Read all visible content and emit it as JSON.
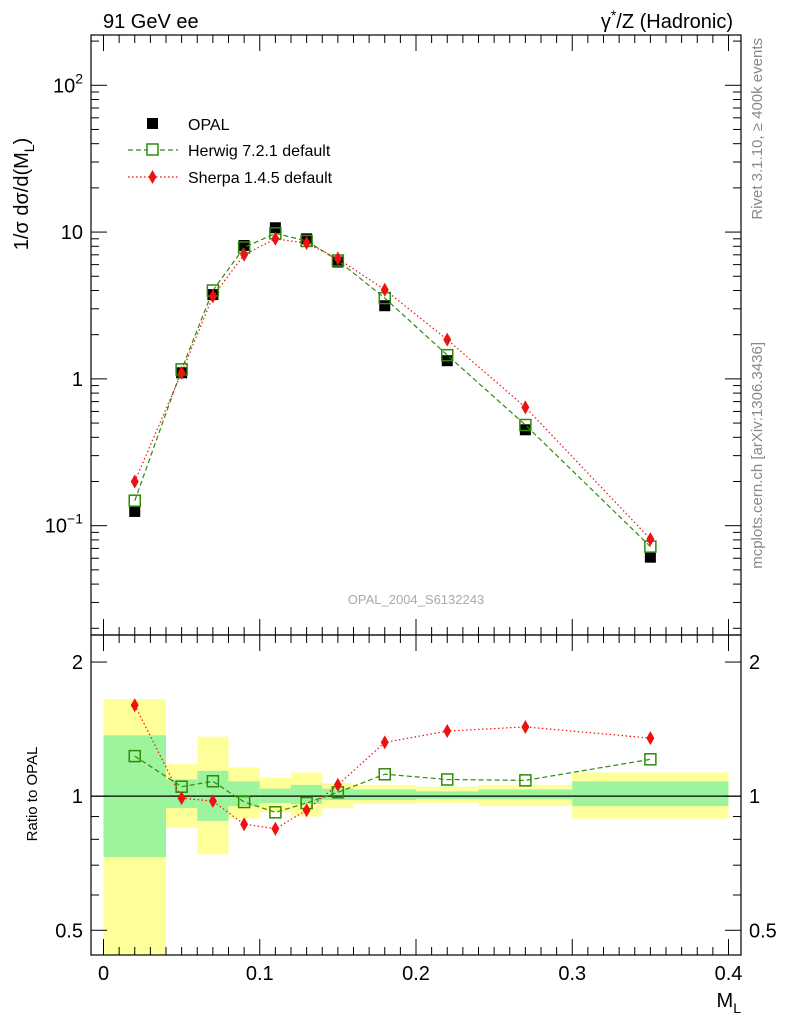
{
  "header": {
    "left": "91 GeV ee",
    "right_prefix": "γ",
    "right_sup": "*",
    "right_suffix": "/Z (Hadronic)"
  },
  "side_labels": {
    "rivet": "Rivet 3.1.10, ≥ 400k events",
    "mcplots": "mcplots.cern.ch [arXiv:1306.3436]"
  },
  "watermark": "OPAL_2004_S6132243",
  "colors": {
    "opal": "#000000",
    "herwig": "#2e8b08",
    "sherpa": "#ee1111",
    "band_inner": "#9cf59c",
    "band_outer": "#ffff99"
  },
  "chart_data": [
    {
      "type": "scatter",
      "panel": "main",
      "ylabel_parts": [
        "1/σ dσ/d(M",
        "L",
        ")"
      ],
      "yscale": "log",
      "ylim": [
        0.018,
        220
      ],
      "xlim": [
        -0.008,
        0.408
      ],
      "y_ticks": [
        {
          "value": 0.1,
          "base": "10",
          "exp": "−1"
        },
        {
          "value": 1,
          "base": "1",
          "exp": ""
        },
        {
          "value": 10,
          "base": "10",
          "exp": ""
        },
        {
          "value": 100,
          "base": "10",
          "exp": "2"
        }
      ],
      "legend": {
        "position": "top-left",
        "entries": [
          "OPAL",
          "Herwig 7.2.1 default",
          "Sherpa 1.4.5 default"
        ]
      },
      "series": [
        {
          "name": "OPAL",
          "marker": "filled-square",
          "x": [
            0.02,
            0.05,
            0.07,
            0.09,
            0.11,
            0.13,
            0.15,
            0.18,
            0.22,
            0.27,
            0.35
          ],
          "y": [
            0.125,
            1.1,
            3.75,
            8.1,
            10.7,
            9.0,
            6.25,
            3.15,
            1.33,
            0.45,
            0.061
          ]
        },
        {
          "name": "Herwig 7.2.1 default",
          "marker": "open-square",
          "line": "dashed",
          "x": [
            0.02,
            0.05,
            0.07,
            0.09,
            0.11,
            0.13,
            0.15,
            0.18,
            0.22,
            0.27,
            0.35
          ],
          "y": [
            0.148,
            1.16,
            4.0,
            7.85,
            9.8,
            8.7,
            6.4,
            3.55,
            1.45,
            0.485,
            0.072
          ]
        },
        {
          "name": "Sherpa 1.4.5 default",
          "marker": "filled-diamond",
          "line": "dotted",
          "x": [
            0.02,
            0.05,
            0.07,
            0.09,
            0.11,
            0.13,
            0.15,
            0.18,
            0.22,
            0.27,
            0.35
          ],
          "y": [
            0.2,
            1.1,
            3.65,
            7.0,
            9.0,
            8.4,
            6.6,
            4.05,
            1.85,
            0.64,
            0.081
          ]
        }
      ]
    },
    {
      "type": "scatter",
      "panel": "ratio",
      "ylabel": "Ratio to OPAL",
      "xlabel_parts": [
        "M",
        "L"
      ],
      "yscale": "log",
      "ylim": [
        0.44,
        2.3
      ],
      "xlim": [
        -0.008,
        0.408
      ],
      "y_ticks": [
        0.5,
        1,
        2
      ],
      "x_ticks": [
        {
          "value": 0,
          "label": "0"
        },
        {
          "value": 0.1,
          "label": "0.1"
        },
        {
          "value": 0.2,
          "label": "0.2"
        },
        {
          "value": 0.3,
          "label": "0.3"
        },
        {
          "value": 0.4,
          "label": "0.4"
        }
      ],
      "bands": [
        {
          "x0": 0.0,
          "x1": 0.04,
          "inner": [
            0.73,
            1.37
          ],
          "outer": [
            0.38,
            1.65
          ]
        },
        {
          "x0": 0.04,
          "x1": 0.06,
          "inner": [
            0.94,
            1.09
          ],
          "outer": [
            0.85,
            1.18
          ]
        },
        {
          "x0": 0.06,
          "x1": 0.08,
          "inner": [
            0.88,
            1.14
          ],
          "outer": [
            0.74,
            1.36
          ]
        },
        {
          "x0": 0.08,
          "x1": 0.1,
          "inner": [
            0.95,
            1.08
          ],
          "outer": [
            0.89,
            1.16
          ]
        },
        {
          "x0": 0.1,
          "x1": 0.12,
          "inner": [
            0.965,
            1.04
          ],
          "outer": [
            0.92,
            1.1
          ]
        },
        {
          "x0": 0.12,
          "x1": 0.14,
          "inner": [
            0.96,
            1.06
          ],
          "outer": [
            0.9,
            1.13
          ]
        },
        {
          "x0": 0.14,
          "x1": 0.16,
          "inner": [
            0.98,
            1.04
          ],
          "outer": [
            0.94,
            1.07
          ]
        },
        {
          "x0": 0.16,
          "x1": 0.2,
          "inner": [
            0.98,
            1.035
          ],
          "outer": [
            0.96,
            1.06
          ]
        },
        {
          "x0": 0.2,
          "x1": 0.24,
          "inner": [
            0.985,
            1.025
          ],
          "outer": [
            0.965,
            1.05
          ]
        },
        {
          "x0": 0.24,
          "x1": 0.3,
          "inner": [
            0.985,
            1.035
          ],
          "outer": [
            0.95,
            1.06
          ]
        },
        {
          "x0": 0.3,
          "x1": 0.4,
          "inner": [
            0.95,
            1.08
          ],
          "outer": [
            0.89,
            1.13
          ]
        }
      ],
      "series": [
        {
          "name": "Herwig 7.2.1 default",
          "marker": "open-square",
          "line": "dashed",
          "x": [
            0.02,
            0.05,
            0.07,
            0.09,
            0.11,
            0.13,
            0.15,
            0.18,
            0.22,
            0.27,
            0.35
          ],
          "y": [
            1.23,
            1.05,
            1.08,
            0.97,
            0.92,
            0.965,
            1.02,
            1.12,
            1.09,
            1.085,
            1.21
          ]
        },
        {
          "name": "Sherpa 1.4.5 default",
          "marker": "filled-diamond",
          "line": "dotted",
          "x": [
            0.02,
            0.05,
            0.07,
            0.09,
            0.11,
            0.13,
            0.15,
            0.18,
            0.22,
            0.27,
            0.35
          ],
          "y": [
            1.6,
            0.99,
            0.975,
            0.865,
            0.845,
            0.93,
            1.06,
            1.32,
            1.4,
            1.43,
            1.35
          ]
        }
      ]
    }
  ]
}
